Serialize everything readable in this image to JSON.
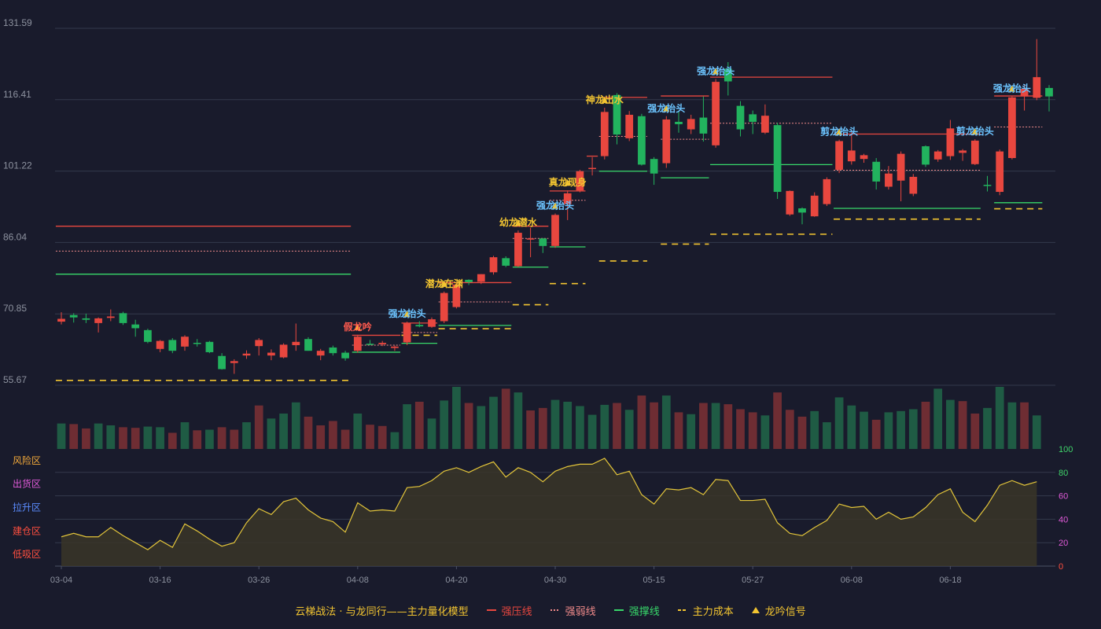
{
  "chart_data": {
    "type": "candlestick",
    "colors": {
      "background": "#191b2c",
      "up": "#e8473f",
      "down": "#22b35e",
      "grid": "#343a4c",
      "axis_text": "#8d929f",
      "resistance": "#e8473f",
      "weak": "#f08a8a",
      "support": "#38d86a",
      "cost": "#f3c531",
      "indicator_line": "#e2c43a",
      "indicator_fill": "#3a3528",
      "label_blue": "#6cc4ff",
      "label_yellow": "#f3c531",
      "label_red": "#ff5a4e"
    },
    "price_axis": {
      "ticks": [
        "131.59",
        "116.41",
        "101.22",
        "86.04",
        "70.85",
        "55.67"
      ],
      "ylim": [
        55.67,
        131.59
      ]
    },
    "x_ticks": [
      {
        "index": 0,
        "label": "03-04"
      },
      {
        "index": 8,
        "label": "03-16"
      },
      {
        "index": 16,
        "label": "03-26"
      },
      {
        "index": 24,
        "label": "04-08"
      },
      {
        "index": 32,
        "label": "04-20"
      },
      {
        "index": 40,
        "label": "04-30"
      },
      {
        "index": 48,
        "label": "05-15"
      },
      {
        "index": 56,
        "label": "05-27"
      },
      {
        "index": 64,
        "label": "06-08"
      },
      {
        "index": 72,
        "label": "06-18"
      }
    ],
    "ohlc": [
      [
        69.2,
        69.8,
        68.6,
        71.2
      ],
      [
        70.6,
        70.1,
        69.0,
        71.0
      ],
      [
        69.9,
        69.6,
        68.9,
        70.9
      ],
      [
        68.9,
        69.9,
        66.9,
        70.1
      ],
      [
        70.0,
        70.3,
        69.3,
        71.8
      ],
      [
        71.0,
        68.9,
        68.5,
        71.3
      ],
      [
        68.6,
        67.8,
        66.0,
        69.6
      ],
      [
        67.4,
        64.9,
        64.6,
        67.7
      ],
      [
        63.4,
        65.1,
        62.7,
        65.3
      ],
      [
        65.3,
        63.0,
        62.5,
        65.7
      ],
      [
        63.9,
        66.0,
        63.0,
        66.3
      ],
      [
        64.7,
        64.6,
        63.9,
        65.5
      ],
      [
        64.9,
        62.7,
        62.5,
        65.1
      ],
      [
        61.9,
        59.1,
        59.0,
        62.5
      ],
      [
        60.4,
        60.8,
        58.1,
        61.2
      ],
      [
        62.0,
        62.4,
        61.3,
        63.1
      ],
      [
        64.0,
        65.3,
        62.0,
        65.7
      ],
      [
        62.0,
        62.6,
        61.0,
        63.3
      ],
      [
        61.6,
        64.3,
        61.4,
        64.6
      ],
      [
        64.2,
        64.9,
        63.0,
        68.8
      ],
      [
        65.5,
        63.0,
        63.0,
        65.9
      ],
      [
        62.0,
        63.0,
        61.0,
        63.4
      ],
      [
        63.7,
        62.5,
        62.0,
        64.1
      ],
      [
        62.6,
        61.4,
        60.9,
        63.0
      ],
      [
        63.0,
        66.0,
        62.6,
        66.4
      ],
      [
        64.5,
        64.4,
        64.2,
        65.3
      ],
      [
        64.4,
        64.7,
        64.0,
        65.1
      ],
      [
        63.6,
        63.9,
        63.0,
        64.1
      ],
      [
        64.8,
        68.9,
        64.2,
        69.2
      ],
      [
        68.5,
        68.2,
        68.0,
        69.3
      ],
      [
        68.1,
        69.7,
        67.9,
        70.1
      ],
      [
        69.3,
        75.3,
        68.9,
        75.6
      ],
      [
        72.3,
        77.1,
        72.0,
        77.4
      ],
      [
        78.1,
        77.6,
        77.0,
        78.2
      ],
      [
        77.7,
        79.3,
        77.2,
        79.3
      ],
      [
        79.7,
        82.9,
        79.2,
        83.2
      ],
      [
        82.7,
        81.1,
        80.8,
        83.1
      ],
      [
        81.0,
        88.1,
        80.8,
        88.6
      ],
      [
        86.7,
        86.9,
        82.9,
        89.2
      ],
      [
        86.9,
        85.3,
        83.8,
        87.0
      ],
      [
        85.3,
        91.9,
        84.9,
        92.2
      ],
      [
        94.2,
        96.5,
        90.8,
        97.1
      ],
      [
        97.1,
        101.2,
        96.7,
        101.5
      ],
      [
        101.9,
        101.9,
        100.3,
        104.2
      ],
      [
        104.4,
        113.8,
        103.7,
        114.7
      ],
      [
        117.4,
        109.0,
        106.9,
        117.8
      ],
      [
        108.2,
        113.2,
        107.6,
        114.0
      ],
      [
        112.9,
        102.6,
        102.4,
        113.4
      ],
      [
        103.8,
        100.7,
        98.3,
        104.2
      ],
      [
        102.9,
        112.2,
        101.9,
        112.9
      ],
      [
        111.7,
        111.2,
        109.4,
        114.1
      ],
      [
        110.1,
        112.3,
        109.1,
        113.2
      ],
      [
        112.6,
        109.2,
        107.5,
        117.1
      ],
      [
        106.7,
        120.2,
        106.2,
        120.8
      ],
      [
        123.0,
        120.3,
        117.3,
        124.4
      ],
      [
        115.1,
        110.1,
        108.6,
        116.1
      ],
      [
        113.3,
        111.7,
        109.1,
        114.1
      ],
      [
        109.4,
        113.0,
        109.1,
        115.4
      ],
      [
        111.0,
        96.8,
        95.3,
        111.5
      ],
      [
        92.0,
        97.0,
        91.7,
        97.1
      ],
      [
        93.3,
        92.4,
        89.9,
        93.5
      ],
      [
        91.6,
        96.0,
        91.5,
        96.7
      ],
      [
        94.2,
        99.5,
        93.8,
        99.9
      ],
      [
        101.5,
        107.6,
        100.8,
        107.9
      ],
      [
        103.3,
        105.6,
        102.6,
        109.9
      ],
      [
        103.8,
        104.6,
        103.0,
        104.9
      ],
      [
        103.2,
        99.0,
        97.3,
        104.0
      ],
      [
        97.9,
        100.7,
        97.3,
        102.3
      ],
      [
        99.2,
        104.9,
        94.8,
        105.4
      ],
      [
        96.4,
        100.0,
        95.9,
        100.6
      ],
      [
        106.5,
        102.6,
        102.1,
        106.7
      ],
      [
        103.7,
        105.4,
        103.2,
        105.7
      ],
      [
        104.4,
        110.3,
        103.6,
        112.1
      ],
      [
        105.1,
        105.6,
        103.4,
        105.9
      ],
      [
        102.7,
        107.7,
        102.5,
        108.0
      ],
      [
        98.3,
        98.1,
        96.9,
        100.2
      ],
      [
        96.8,
        105.4,
        96.1,
        105.8
      ],
      [
        104.0,
        116.9,
        103.7,
        117.1
      ],
      [
        117.1,
        118.7,
        114.1,
        119.7
      ],
      [
        116.8,
        121.2,
        116.3,
        129.3
      ],
      [
        118.9,
        117.1,
        113.9,
        119.5
      ]
    ],
    "volume": [
      {
        "v": 0.41,
        "up": false
      },
      {
        "v": 0.4,
        "up": true
      },
      {
        "v": 0.33,
        "up": true
      },
      {
        "v": 0.41,
        "up": false
      },
      {
        "v": 0.38,
        "up": false
      },
      {
        "v": 0.35,
        "up": true
      },
      {
        "v": 0.34,
        "up": true
      },
      {
        "v": 0.36,
        "up": false
      },
      {
        "v": 0.35,
        "up": false
      },
      {
        "v": 0.26,
        "up": true
      },
      {
        "v": 0.43,
        "up": false
      },
      {
        "v": 0.3,
        "up": true
      },
      {
        "v": 0.31,
        "up": false
      },
      {
        "v": 0.35,
        "up": true
      },
      {
        "v": 0.31,
        "up": true
      },
      {
        "v": 0.43,
        "up": false
      },
      {
        "v": 0.7,
        "up": true
      },
      {
        "v": 0.49,
        "up": false
      },
      {
        "v": 0.57,
        "up": false
      },
      {
        "v": 0.75,
        "up": false
      },
      {
        "v": 0.52,
        "up": true
      },
      {
        "v": 0.38,
        "up": true
      },
      {
        "v": 0.45,
        "up": true
      },
      {
        "v": 0.31,
        "up": true
      },
      {
        "v": 0.57,
        "up": false
      },
      {
        "v": 0.39,
        "up": true
      },
      {
        "v": 0.37,
        "up": true
      },
      {
        "v": 0.27,
        "up": false
      },
      {
        "v": 0.72,
        "up": false
      },
      {
        "v": 0.76,
        "up": true
      },
      {
        "v": 0.49,
        "up": false
      },
      {
        "v": 0.78,
        "up": false
      },
      {
        "v": 1.0,
        "up": false
      },
      {
        "v": 0.74,
        "up": true
      },
      {
        "v": 0.69,
        "up": false
      },
      {
        "v": 0.84,
        "up": false
      },
      {
        "v": 0.97,
        "up": true
      },
      {
        "v": 0.91,
        "up": false
      },
      {
        "v": 0.62,
        "up": true
      },
      {
        "v": 0.66,
        "up": true
      },
      {
        "v": 0.79,
        "up": false
      },
      {
        "v": 0.76,
        "up": false
      },
      {
        "v": 0.69,
        "up": false
      },
      {
        "v": 0.55,
        "up": false
      },
      {
        "v": 0.71,
        "up": false
      },
      {
        "v": 0.74,
        "up": true
      },
      {
        "v": 0.63,
        "up": false
      },
      {
        "v": 0.86,
        "up": true
      },
      {
        "v": 0.75,
        "up": true
      },
      {
        "v": 0.86,
        "up": false
      },
      {
        "v": 0.59,
        "up": true
      },
      {
        "v": 0.56,
        "up": false
      },
      {
        "v": 0.74,
        "up": true
      },
      {
        "v": 0.74,
        "up": false
      },
      {
        "v": 0.72,
        "up": true
      },
      {
        "v": 0.64,
        "up": true
      },
      {
        "v": 0.59,
        "up": true
      },
      {
        "v": 0.54,
        "up": false
      },
      {
        "v": 0.91,
        "up": true
      },
      {
        "v": 0.63,
        "up": true
      },
      {
        "v": 0.52,
        "up": true
      },
      {
        "v": 0.61,
        "up": false
      },
      {
        "v": 0.43,
        "up": false
      },
      {
        "v": 0.83,
        "up": false
      },
      {
        "v": 0.7,
        "up": false
      },
      {
        "v": 0.6,
        "up": false
      },
      {
        "v": 0.47,
        "up": true
      },
      {
        "v": 0.59,
        "up": false
      },
      {
        "v": 0.61,
        "up": false
      },
      {
        "v": 0.64,
        "up": false
      },
      {
        "v": 0.76,
        "up": true
      },
      {
        "v": 0.97,
        "up": false
      },
      {
        "v": 0.79,
        "up": false
      },
      {
        "v": 0.77,
        "up": true
      },
      {
        "v": 0.57,
        "up": true
      },
      {
        "v": 0.66,
        "up": false
      },
      {
        "v": 1.0,
        "up": false
      },
      {
        "v": 0.75,
        "up": false
      },
      {
        "v": 0.75,
        "up": true
      },
      {
        "v": 0.54,
        "up": false
      }
    ],
    "indicator": {
      "ylim": [
        0,
        100
      ],
      "ticks": [
        "100",
        "80",
        "60",
        "40",
        "20",
        "0"
      ],
      "zones": [
        "风险区",
        "出货区",
        "拉升区",
        "建仓区",
        "低吸区"
      ],
      "zone_colors": [
        "#f3a93a",
        "#e05ad8",
        "#5b8cff",
        "#ff4f3f",
        "#ff4f3f"
      ],
      "values": [
        25,
        28,
        25,
        25,
        33,
        26,
        20,
        14,
        22,
        16,
        36,
        30,
        23,
        17,
        20,
        37,
        49,
        44,
        55,
        58,
        48,
        41,
        38,
        29,
        54,
        47,
        48,
        47,
        67,
        68,
        73,
        81,
        84,
        80,
        85,
        89,
        76,
        84,
        80,
        72,
        81,
        85,
        87,
        87,
        92,
        78,
        81,
        61,
        53,
        66,
        65,
        67,
        61,
        74,
        73,
        56,
        56,
        57,
        37,
        28,
        26,
        33,
        39,
        53,
        50,
        51,
        40,
        46,
        40,
        42,
        50,
        61,
        66,
        46,
        38,
        52,
        69,
        73,
        69,
        72
      ]
    },
    "levels": [
      {
        "type": "strong",
        "y": 89.5,
        "from": 0,
        "to": 23
      },
      {
        "type": "weak",
        "y": 84.2,
        "from": 0,
        "to": 23
      },
      {
        "type": "support",
        "y": 79.3,
        "from": 0,
        "to": 23
      },
      {
        "type": "cost",
        "y": 56.7,
        "from": 0,
        "to": 23
      },
      {
        "type": "strong",
        "y": 66.3,
        "from": 24,
        "to": 27
      },
      {
        "type": "weak",
        "y": 64.2,
        "from": 24,
        "to": 27
      },
      {
        "type": "support",
        "y": 62.7,
        "from": 24,
        "to": 27
      },
      {
        "type": "strong",
        "y": 68.9,
        "from": 28,
        "to": 30
      },
      {
        "type": "weak",
        "y": 66.9,
        "from": 28,
        "to": 30
      },
      {
        "type": "support",
        "y": 64.6,
        "from": 28,
        "to": 30
      },
      {
        "type": "cost",
        "y": 66.3,
        "from": 28,
        "to": 30
      },
      {
        "type": "strong",
        "y": 77.5,
        "from": 31,
        "to": 36
      },
      {
        "type": "weak",
        "y": 73.4,
        "from": 31,
        "to": 36
      },
      {
        "type": "support",
        "y": 68.4,
        "from": 31,
        "to": 36
      },
      {
        "type": "cost",
        "y": 67.7,
        "from": 31,
        "to": 36
      },
      {
        "type": "strong",
        "y": 89.5,
        "from": 37,
        "to": 39
      },
      {
        "type": "weak",
        "y": 86.9,
        "from": 37,
        "to": 39
      },
      {
        "type": "support",
        "y": 80.8,
        "from": 37,
        "to": 39
      },
      {
        "type": "cost",
        "y": 72.8,
        "from": 37,
        "to": 39
      },
      {
        "type": "strong",
        "y": 97.0,
        "from": 40,
        "to": 42
      },
      {
        "type": "weak",
        "y": 95.0,
        "from": 40,
        "to": 42
      },
      {
        "type": "support",
        "y": 85.1,
        "from": 40,
        "to": 42
      },
      {
        "type": "cost",
        "y": 77.3,
        "from": 40,
        "to": 42
      },
      {
        "type": "strong",
        "y": 104.4,
        "from": 43,
        "to": 43
      },
      {
        "type": "strong",
        "y": 116.9,
        "from": 44,
        "to": 47
      },
      {
        "type": "weak",
        "y": 108.6,
        "from": 44,
        "to": 47
      },
      {
        "type": "support",
        "y": 101.2,
        "from": 44,
        "to": 47
      },
      {
        "type": "cost",
        "y": 82.1,
        "from": 44,
        "to": 47
      },
      {
        "type": "strong",
        "y": 117.2,
        "from": 49,
        "to": 52
      },
      {
        "type": "weak",
        "y": 108.0,
        "from": 49,
        "to": 52
      },
      {
        "type": "support",
        "y": 99.8,
        "from": 49,
        "to": 52
      },
      {
        "type": "cost",
        "y": 85.7,
        "from": 49,
        "to": 52
      },
      {
        "type": "strong",
        "y": 121.2,
        "from": 53,
        "to": 62
      },
      {
        "type": "weak",
        "y": 111.4,
        "from": 53,
        "to": 62
      },
      {
        "type": "support",
        "y": 102.6,
        "from": 53,
        "to": 62
      },
      {
        "type": "cost",
        "y": 87.8,
        "from": 53,
        "to": 62
      },
      {
        "type": "strong",
        "y": 109.1,
        "from": 63,
        "to": 74
      },
      {
        "type": "weak",
        "y": 101.4,
        "from": 63,
        "to": 74
      },
      {
        "type": "support",
        "y": 93.3,
        "from": 63,
        "to": 74
      },
      {
        "type": "cost",
        "y": 91.0,
        "from": 63,
        "to": 74
      },
      {
        "type": "strong",
        "y": 117.2,
        "from": 76,
        "to": 79
      },
      {
        "type": "weak",
        "y": 110.6,
        "from": 76,
        "to": 79
      },
      {
        "type": "support",
        "y": 94.5,
        "from": 76,
        "to": 79
      },
      {
        "type": "cost",
        "y": 93.2,
        "from": 76,
        "to": 79
      }
    ],
    "signals": [
      {
        "index": 24,
        "text": "假龙吟",
        "color": "label_red"
      },
      {
        "index": 28,
        "text": "强龙抬头",
        "color": "label_blue"
      },
      {
        "index": 31,
        "text": "潜龙在渊",
        "color": "label_yellow"
      },
      {
        "index": 37,
        "text": "幼龙潜水",
        "color": "label_yellow"
      },
      {
        "index": 40,
        "text": "强龙抬头",
        "color": "label_blue"
      },
      {
        "index": 41,
        "text": "真龙现身",
        "color": "label_yellow"
      },
      {
        "index": 44,
        "text": "神龙出水",
        "color": "label_yellow"
      },
      {
        "index": 49,
        "text": "强龙抬头",
        "color": "label_blue"
      },
      {
        "index": 53,
        "text": "强龙抬头",
        "color": "label_blue"
      },
      {
        "index": 63,
        "text": "剪龙抬头",
        "color": "label_blue"
      },
      {
        "index": 74,
        "text": "剪龙抬头",
        "color": "label_blue"
      },
      {
        "index": 77,
        "text": "强龙抬头",
        "color": "label_blue"
      }
    ]
  },
  "legend": {
    "title": "云梯战法 · 与龙同行——主力量化模型",
    "items": [
      {
        "label": "强压线",
        "color": "#e8473f",
        "style": "solid"
      },
      {
        "label": "强弱线",
        "color": "#f08a8a",
        "style": "dotted"
      },
      {
        "label": "强撑线",
        "color": "#38d86a",
        "style": "solid"
      },
      {
        "label": "主力成本",
        "color": "#f3c531",
        "style": "dashed"
      },
      {
        "label": "龙吟信号",
        "color": "#f3c531",
        "style": "triangle"
      }
    ]
  }
}
